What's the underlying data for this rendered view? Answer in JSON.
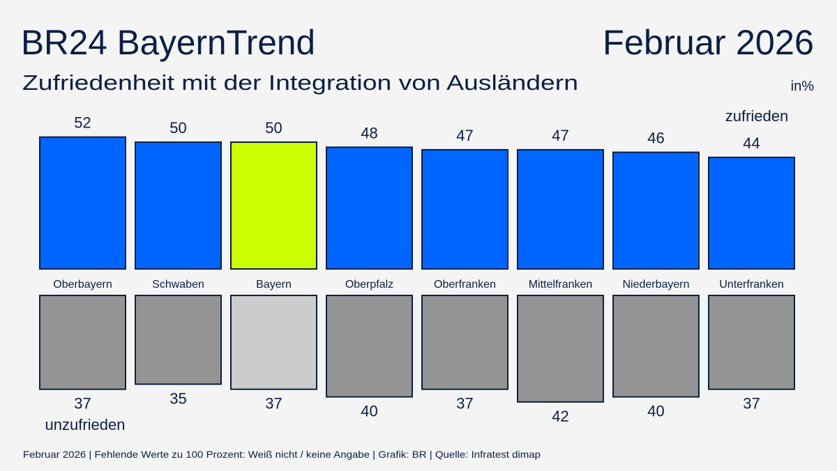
{
  "header": {
    "title": "BR24 BayernTrend",
    "date": "Februar 2026",
    "subtitle": "Zufriedenheit mit der Integration von Ausländern",
    "unit": "in%"
  },
  "footer": "Februar 2026 | Fehlende Werte zu 100 Prozent: Weiß nicht / keine Angabe | Grafik: BR | Quelle: Infratest dimap",
  "colors": {
    "background": "#f4f4f4",
    "text": "#0b1f45",
    "zufrieden": "#0066ff",
    "zufrieden_highlight": "#ccff00",
    "unzufrieden": "#949494",
    "unzufrieden_highlight": "#cccccc",
    "border": "#0b1f45"
  },
  "chart_data": {
    "type": "bar",
    "title": "Zufriedenheit mit der Integration von Ausländern",
    "unit": "in%",
    "categories": [
      "Oberbayern",
      "Schwaben",
      "Bayern",
      "Oberpfalz",
      "Oberfranken",
      "Mittelfranken",
      "Niederbayern",
      "Unterfranken"
    ],
    "highlight": "Bayern",
    "series": [
      {
        "name": "zufrieden",
        "direction": "up",
        "values": [
          52,
          50,
          50,
          48,
          47,
          47,
          46,
          44
        ]
      },
      {
        "name": "unzufrieden",
        "direction": "down",
        "values": [
          37,
          35,
          37,
          40,
          37,
          42,
          40,
          37
        ]
      }
    ]
  }
}
